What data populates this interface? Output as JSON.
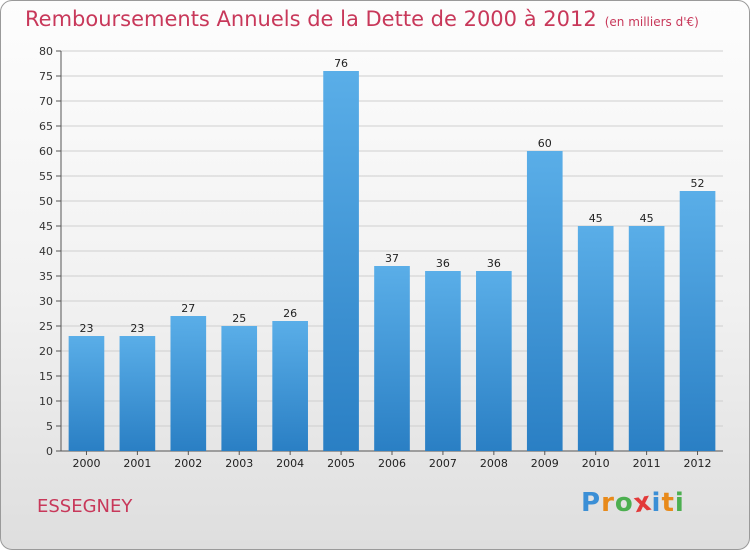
{
  "chart_data": {
    "type": "bar",
    "title": "Remboursements Annuels de la Dette de 2000 à 2012",
    "unit": "(en milliers d'€)",
    "categories": [
      "2000",
      "2001",
      "2002",
      "2003",
      "2004",
      "2005",
      "2006",
      "2007",
      "2008",
      "2009",
      "2010",
      "2011",
      "2012"
    ],
    "values": [
      23,
      23,
      27,
      25,
      26,
      76,
      37,
      36,
      36,
      60,
      45,
      45,
      52
    ],
    "ylim": [
      0,
      80
    ],
    "yticks": [
      0,
      5,
      10,
      15,
      20,
      25,
      30,
      35,
      40,
      45,
      50,
      55,
      60,
      65,
      70,
      75,
      80
    ],
    "grid": true,
    "bar_color": "#4a9fdf"
  },
  "location": "ESSEGNEY",
  "logo": {
    "letters": [
      "P",
      "r",
      "o",
      "x",
      "i",
      "t",
      "i"
    ],
    "colors": [
      "#3b8fd6",
      "#e88a1a",
      "#4caf50",
      "#e23a3a",
      "#3b8fd6",
      "#e88a1a",
      "#4caf50"
    ]
  }
}
